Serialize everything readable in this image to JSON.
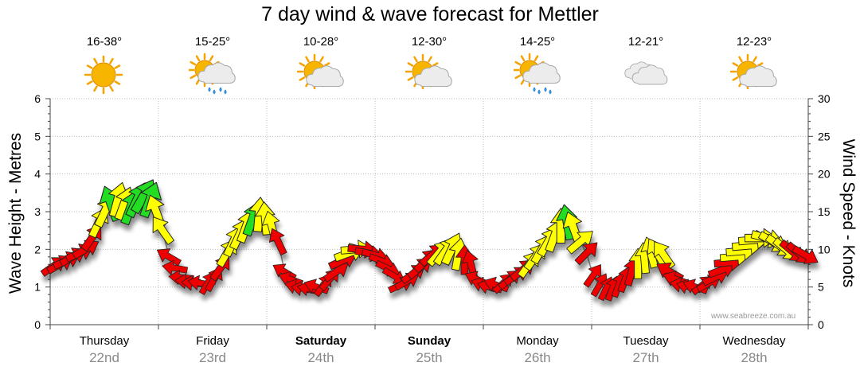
{
  "chart_data": {
    "type": "line",
    "title": "7 day wind & wave forecast for Mettler",
    "ylabel_left": "Wave Height - Metres",
    "ylabel_right": "Wind Speed - Knots",
    "ylim_left": [
      0,
      6
    ],
    "ylim_right": [
      0,
      30
    ],
    "yticks_left": [
      "0",
      "1",
      "2",
      "3",
      "4",
      "5",
      "6"
    ],
    "yticks_right": [
      "0",
      "5",
      "10",
      "15",
      "20",
      "25",
      "30"
    ],
    "watermark": "www.seabreeze.com.au",
    "days": [
      {
        "name": "Thursday",
        "date": "22nd",
        "temp": "16-38°",
        "icon": "sunny-icon",
        "bold": false
      },
      {
        "name": "Friday",
        "date": "23rd",
        "temp": "15-25°",
        "icon": "sun-cloud-rain-icon",
        "bold": false
      },
      {
        "name": "Saturday",
        "date": "24th",
        "temp": "10-28°",
        "icon": "sun-cloud-icon",
        "bold": true
      },
      {
        "name": "Sunday",
        "date": "25th",
        "temp": "12-30°",
        "icon": "sun-cloud-icon",
        "bold": true
      },
      {
        "name": "Monday",
        "date": "26th",
        "temp": "14-25°",
        "icon": "sun-cloud-rain-icon",
        "bold": false
      },
      {
        "name": "Tuesday",
        "date": "27th",
        "temp": "12-21°",
        "icon": "cloudy-icon",
        "bold": false
      },
      {
        "name": "Wednesday",
        "date": "28th",
        "temp": "12-23°",
        "icon": "sun-cloud-icon",
        "bold": false
      }
    ],
    "wind_knots": [
      8.3,
      8.6,
      9,
      8.8,
      9.6,
      9.1,
      10.2,
      12.3,
      14.7,
      17.4,
      16.1,
      15.3,
      16.6,
      18.1,
      18.4,
      17.6,
      14.4,
      12.1,
      6.3,
      5.3,
      5.1,
      5.4,
      5.6,
      5.3,
      5.2,
      6.9,
      8.9,
      11.3,
      12.9,
      13.8,
      15.3,
      16.5,
      15.6,
      14.2,
      11.2,
      8.4,
      5.4,
      5.1,
      5,
      4.8,
      5.1,
      5.3,
      5.6,
      6.5,
      8.4,
      10.3,
      11.9,
      11.1,
      9.8,
      8.2,
      7,
      6.1,
      5.3,
      4.7,
      5.7,
      6.7,
      7.6,
      9.1,
      10.1,
      10.4,
      11.6,
      13.3,
      14.6,
      13.2,
      10.3,
      8.2,
      5.6,
      5.2,
      5.1,
      5.3,
      5.5,
      6.4,
      7.3,
      9.2,
      11,
      11.4,
      12.6,
      13.3,
      14.8,
      16.1,
      16.5,
      14.6,
      11.6,
      8.6,
      5.9,
      5.3,
      5.1,
      5.6,
      6.3,
      7.9,
      9.8,
      11.1,
      11.6,
      12.2,
      12.2,
      11.8,
      9.6,
      7.4,
      5.6,
      5.2,
      5.3,
      5.4,
      6.2,
      7.3,
      8.4,
      9.7,
      10.6,
      11.7,
      12.5,
      12.7,
      13.1,
      12.8,
      12.1,
      11.8,
      10.6,
      9.8,
      9.2,
      8.3
    ],
    "wind_dir_deg": [
      235,
      240,
      245,
      240,
      245,
      240,
      215,
      205,
      205,
      160,
      195,
      200,
      200,
      205,
      210,
      200,
      160,
      145,
      120,
      100,
      95,
      95,
      95,
      100,
      210,
      210,
      215,
      210,
      205,
      205,
      200,
      200,
      185,
      175,
      165,
      155,
      120,
      110,
      105,
      100,
      100,
      110,
      215,
      220,
      235,
      245,
      250,
      265,
      275,
      280,
      285,
      290,
      295,
      300,
      245,
      240,
      235,
      230,
      225,
      230,
      220,
      215,
      205,
      190,
      180,
      165,
      115,
      110,
      105,
      110,
      225,
      230,
      235,
      230,
      215,
      215,
      210,
      210,
      200,
      180,
      170,
      160,
      230,
      225,
      215,
      210,
      205,
      200,
      200,
      200,
      195,
      180,
      175,
      165,
      150,
      145,
      120,
      110,
      100,
      105,
      110,
      230,
      240,
      245,
      250,
      265,
      265,
      265,
      265,
      265,
      270,
      285,
      300,
      305,
      310,
      310,
      310,
      300
    ],
    "wave_m": [
      1.55,
      1.6,
      1.7,
      1.8,
      1.9,
      2.0,
      2.3,
      2.7,
      3.0,
      3.2,
      3.3,
      3.2,
      3.1,
      3.3,
      3.4,
      3.3,
      3.0,
      2.5,
      1.8,
      1.5,
      1.25,
      1.15,
      1.1,
      1.1,
      1.1,
      1.2,
      1.5,
      1.9,
      2.2,
      2.4,
      2.6,
      2.8,
      2.9,
      2.8,
      2.6,
      2.2,
      1.4,
      1.2,
      1.0,
      0.95,
      0.95,
      1.0,
      1.05,
      1.2,
      1.4,
      1.7,
      1.9,
      2.0,
      2.0,
      1.9,
      1.85,
      1.7,
      1.5,
      1.3,
      1.05,
      1.15,
      1.35,
      1.5,
      1.7,
      1.85,
      1.9,
      1.95,
      2.0,
      1.85,
      1.7,
      1.6,
      1.2,
      1.05,
      1.0,
      1.05,
      1.1,
      1.2,
      1.3,
      1.45,
      1.6,
      1.8,
      2.0,
      2.2,
      2.35,
      2.6,
      2.7,
      2.55,
      2.2,
      1.9,
      1.3,
      1.05,
      0.95,
      0.95,
      1.05,
      1.2,
      1.4,
      1.6,
      1.75,
      1.9,
      1.9,
      1.85,
      1.4,
      1.2,
      1.05,
      1.0,
      1.0,
      1.05,
      1.1,
      1.25,
      1.45,
      1.65,
      1.8,
      1.95,
      2.1,
      2.25,
      2.3,
      2.3,
      2.2,
      2.1,
      2.0,
      1.95,
      1.9,
      1.85
    ]
  }
}
